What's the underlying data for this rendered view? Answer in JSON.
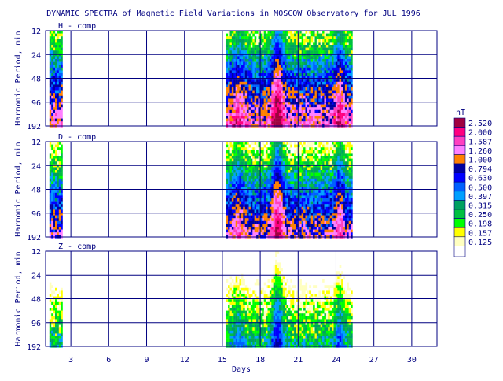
{
  "chart_data": {
    "type": "heatmap",
    "title": "DYNAMIC SPECTRA of Magnetic Field Variations in MOSCOW Observatory for JUL 1996",
    "xlabel": "Days",
    "ylabel": "Harmonic Period, min",
    "xlim": [
      1,
      32
    ],
    "x_ticks": [
      3,
      6,
      9,
      12,
      15,
      18,
      21,
      24,
      27,
      30
    ],
    "y_ticks": [
      12,
      24,
      48,
      96,
      192
    ],
    "y_scale": "log2",
    "grid": true,
    "data_ranges": [
      [
        1.3,
        2.2
      ],
      [
        15.3,
        25.2
      ]
    ],
    "panels": [
      {
        "name": "H - comp",
        "level": 2.3
      },
      {
        "name": "D - comp",
        "level": 1.8
      },
      {
        "name": "Z - comp",
        "level": 0.55
      }
    ],
    "legend": {
      "unit": "nT",
      "placement": "right",
      "levels": [
        "2.520",
        "2.000",
        "1.587",
        "1.260",
        "1.000",
        "0.794",
        "0.630",
        "0.500",
        "0.397",
        "0.315",
        "0.250",
        "0.198",
        "0.157",
        "0.125"
      ],
      "colors": [
        "#a00040",
        "#ff0080",
        "#ff40c0",
        "#ff80ff",
        "#ff8000",
        "#0000a0",
        "#0000ff",
        "#0060ff",
        "#00a0ff",
        "#00a060",
        "#00c040",
        "#00ff00",
        "#ffff00",
        "#ffffc0"
      ]
    }
  }
}
